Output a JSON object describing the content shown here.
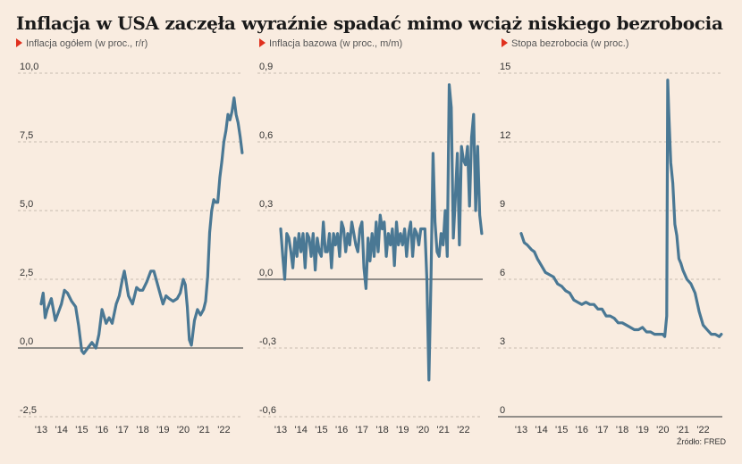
{
  "title": "Inflacja w USA zaczęła wyraźnie spadać mimo wciąż niskiego bezrobocia",
  "source": "Źródło: FRED",
  "colors": {
    "line": "#4a7894",
    "background": "#f9ece0",
    "marker": "#e0301e",
    "grid": "#b8aaa0"
  },
  "chart_data": [
    {
      "type": "line",
      "subtitle": "Inflacja ogółem (w proc., r/r)",
      "xlabel": "",
      "ylabel": "",
      "x_ticks": [
        "'13",
        "'14",
        "'15",
        "'16",
        "'17",
        "'18",
        "'19",
        "'20",
        "'21",
        "'22"
      ],
      "x_range": [
        2013.0,
        2022.95
      ],
      "ylim": [
        -2.5,
        10.0
      ],
      "y_ticks": [
        -2.5,
        0.0,
        2.5,
        5.0,
        7.5,
        10.0
      ],
      "y_tick_labels": [
        "-2,5",
        "0,0",
        "2,5",
        "5,0",
        "7,5",
        "10,0"
      ],
      "zero_line": 0.0,
      "series": [
        {
          "x": [
            2013.0,
            2013.1,
            2013.2,
            2013.3,
            2013.5,
            2013.7,
            2013.85,
            2014.0,
            2014.15,
            2014.3,
            2014.5,
            2014.7,
            2014.85,
            2015.0,
            2015.1,
            2015.3,
            2015.5,
            2015.7,
            2015.85,
            2016.0,
            2016.2,
            2016.35,
            2016.5,
            2016.7,
            2016.85,
            2017.0,
            2017.1,
            2017.3,
            2017.5,
            2017.7,
            2017.85,
            2018.0,
            2018.2,
            2018.4,
            2018.55,
            2018.7,
            2018.85,
            2019.0,
            2019.15,
            2019.3,
            2019.5,
            2019.7,
            2019.85,
            2020.0,
            2020.1,
            2020.2,
            2020.3,
            2020.4,
            2020.55,
            2020.7,
            2020.85,
            2021.0,
            2021.1,
            2021.2,
            2021.3,
            2021.4,
            2021.5,
            2021.6,
            2021.7,
            2021.8,
            2021.9,
            2022.0,
            2022.1,
            2022.2,
            2022.3,
            2022.4,
            2022.5,
            2022.6,
            2022.7,
            2022.8,
            2022.9
          ],
          "y": [
            1.6,
            2.0,
            1.1,
            1.4,
            1.8,
            1.0,
            1.3,
            1.6,
            2.1,
            2.0,
            1.7,
            1.5,
            0.8,
            -0.1,
            -0.2,
            0.0,
            0.2,
            0.0,
            0.5,
            1.4,
            0.9,
            1.1,
            0.9,
            1.6,
            1.9,
            2.5,
            2.8,
            1.9,
            1.6,
            2.2,
            2.1,
            2.1,
            2.4,
            2.8,
            2.8,
            2.4,
            2.0,
            1.6,
            1.9,
            1.8,
            1.7,
            1.8,
            2.0,
            2.5,
            2.3,
            1.5,
            0.3,
            0.1,
            1.0,
            1.4,
            1.2,
            1.4,
            1.7,
            2.6,
            4.2,
            5.0,
            5.4,
            5.3,
            5.3,
            6.2,
            6.8,
            7.5,
            7.9,
            8.5,
            8.3,
            8.6,
            9.1,
            8.5,
            8.2,
            7.7,
            7.1
          ]
        }
      ]
    },
    {
      "type": "line",
      "subtitle": "Inflacja bazowa (w proc., m/m)",
      "xlabel": "",
      "ylabel": "",
      "x_ticks": [
        "'13",
        "'14",
        "'15",
        "'16",
        "'17",
        "'18",
        "'19",
        "'20",
        "'21",
        "'22"
      ],
      "x_range": [
        2013.0,
        2022.95
      ],
      "ylim": [
        -0.6,
        0.9
      ],
      "y_ticks": [
        -0.6,
        -0.3,
        0.0,
        0.3,
        0.6,
        0.9
      ],
      "y_tick_labels": [
        "-0,6",
        "-0,3",
        "0,0",
        "0,3",
        "0,6",
        "0,9"
      ],
      "zero_line": 0.0,
      "series": [
        {
          "x": [
            2013.0,
            2013.1,
            2013.2,
            2013.3,
            2013.4,
            2013.5,
            2013.6,
            2013.7,
            2013.8,
            2013.9,
            2014.0,
            2014.1,
            2014.2,
            2014.3,
            2014.4,
            2014.5,
            2014.6,
            2014.7,
            2014.8,
            2014.9,
            2015.0,
            2015.1,
            2015.2,
            2015.3,
            2015.4,
            2015.5,
            2015.6,
            2015.7,
            2015.8,
            2015.9,
            2016.0,
            2016.1,
            2016.2,
            2016.3,
            2016.4,
            2016.5,
            2016.6,
            2016.7,
            2016.8,
            2016.9,
            2017.0,
            2017.1,
            2017.2,
            2017.3,
            2017.4,
            2017.5,
            2017.6,
            2017.7,
            2017.8,
            2017.9,
            2018.0,
            2018.1,
            2018.2,
            2018.3,
            2018.4,
            2018.5,
            2018.6,
            2018.7,
            2018.8,
            2018.9,
            2019.0,
            2019.1,
            2019.2,
            2019.3,
            2019.4,
            2019.5,
            2019.6,
            2019.7,
            2019.8,
            2019.9,
            2020.0,
            2020.1,
            2020.2,
            2020.3,
            2020.4,
            2020.5,
            2020.6,
            2020.7,
            2020.8,
            2020.9,
            2021.0,
            2021.1,
            2021.2,
            2021.3,
            2021.4,
            2021.5,
            2021.6,
            2021.7,
            2021.8,
            2021.9,
            2022.0,
            2022.1,
            2022.2,
            2022.3,
            2022.4,
            2022.5,
            2022.6,
            2022.7,
            2022.8,
            2022.9
          ],
          "y": [
            0.22,
            0.1,
            0.0,
            0.2,
            0.18,
            0.12,
            0.05,
            0.18,
            0.1,
            0.2,
            0.12,
            0.2,
            0.05,
            0.2,
            0.18,
            0.1,
            0.2,
            0.04,
            0.18,
            0.12,
            0.1,
            0.25,
            0.12,
            0.12,
            0.2,
            0.05,
            0.2,
            0.15,
            0.2,
            0.1,
            0.25,
            0.22,
            0.12,
            0.2,
            0.15,
            0.25,
            0.2,
            0.15,
            0.12,
            0.22,
            0.25,
            0.05,
            -0.04,
            0.18,
            0.08,
            0.2,
            0.1,
            0.25,
            0.12,
            0.28,
            0.22,
            0.25,
            0.1,
            0.2,
            0.15,
            0.22,
            0.06,
            0.25,
            0.15,
            0.2,
            0.15,
            0.22,
            0.1,
            0.2,
            0.25,
            0.1,
            0.22,
            0.2,
            0.15,
            0.22,
            0.22,
            0.22,
            0.0,
            -0.44,
            0.0,
            0.55,
            0.25,
            0.12,
            0.1,
            0.2,
            0.15,
            0.3,
            0.1,
            0.85,
            0.75,
            0.18,
            0.35,
            0.55,
            0.15,
            0.58,
            0.52,
            0.5,
            0.58,
            0.32,
            0.62,
            0.72,
            0.3,
            0.58,
            0.28,
            0.2
          ]
        }
      ]
    },
    {
      "type": "line",
      "subtitle": "Stopa bezrobocia (w proc.)",
      "xlabel": "",
      "ylabel": "",
      "x_ticks": [
        "'13",
        "'14",
        "'15",
        "'16",
        "'17",
        "'18",
        "'19",
        "'20",
        "'21",
        "'22"
      ],
      "x_range": [
        2013.0,
        2022.95
      ],
      "ylim": [
        0,
        15
      ],
      "y_ticks": [
        0,
        3,
        6,
        9,
        12,
        15
      ],
      "y_tick_labels": [
        "0",
        "3",
        "6",
        "9",
        "12",
        "15"
      ],
      "zero_line": 0,
      "series": [
        {
          "x": [
            2013.0,
            2013.15,
            2013.3,
            2013.5,
            2013.65,
            2013.8,
            2014.0,
            2014.2,
            2014.4,
            2014.6,
            2014.8,
            2015.0,
            2015.2,
            2015.4,
            2015.6,
            2015.8,
            2016.0,
            2016.2,
            2016.4,
            2016.6,
            2016.8,
            2017.0,
            2017.2,
            2017.4,
            2017.6,
            2017.8,
            2018.0,
            2018.2,
            2018.4,
            2018.6,
            2018.8,
            2019.0,
            2019.2,
            2019.4,
            2019.6,
            2019.8,
            2020.0,
            2020.1,
            2020.2,
            2020.25,
            2020.3,
            2020.4,
            2020.5,
            2020.6,
            2020.7,
            2020.8,
            2020.9,
            2021.0,
            2021.2,
            2021.4,
            2021.6,
            2021.8,
            2022.0,
            2022.2,
            2022.4,
            2022.6,
            2022.8,
            2022.9
          ],
          "y": [
            8.0,
            7.6,
            7.5,
            7.3,
            7.2,
            6.9,
            6.6,
            6.3,
            6.2,
            6.1,
            5.8,
            5.7,
            5.5,
            5.4,
            5.1,
            5.0,
            4.9,
            5.0,
            4.9,
            4.9,
            4.7,
            4.7,
            4.4,
            4.4,
            4.3,
            4.1,
            4.1,
            4.0,
            3.9,
            3.8,
            3.8,
            3.9,
            3.7,
            3.7,
            3.6,
            3.6,
            3.6,
            3.5,
            4.4,
            14.7,
            13.3,
            11.1,
            10.2,
            8.4,
            7.9,
            6.9,
            6.7,
            6.4,
            6.0,
            5.8,
            5.4,
            4.6,
            4.0,
            3.8,
            3.6,
            3.6,
            3.5,
            3.6
          ]
        }
      ]
    }
  ]
}
